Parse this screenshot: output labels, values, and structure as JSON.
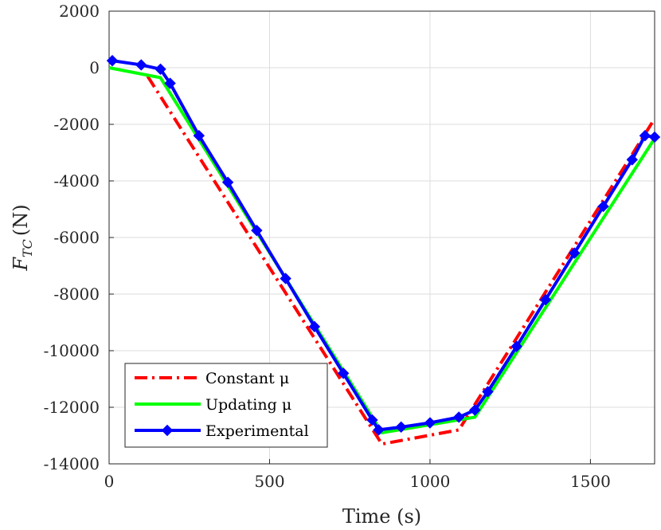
{
  "chart_data": {
    "type": "line",
    "xlabel": "Time (s)",
    "ylabel_main": "F",
    "ylabel_sub": "TC",
    "ylabel_unit": "(N)",
    "xlim": [
      0,
      1700
    ],
    "ylim": [
      -14000,
      2000
    ],
    "xticks": [
      0,
      500,
      1000,
      1500
    ],
    "yticks": [
      2000,
      0,
      -2000,
      -4000,
      -6000,
      -8000,
      -10000,
      -12000,
      -14000
    ],
    "grid": true,
    "legend_position": "bottom-left",
    "series": [
      {
        "name": "Constant μ",
        "color": "#ff0000",
        "style": "dashdot",
        "marker": "none",
        "x": [
          120,
          850,
          1090,
          1700
        ],
        "y": [
          -300,
          -13300,
          -12800,
          -1800
        ]
      },
      {
        "name": "Updating μ",
        "color": "#00ff00",
        "style": "solid",
        "marker": "none",
        "x": [
          0,
          160,
          850,
          1140,
          1700
        ],
        "y": [
          0,
          -350,
          -12900,
          -12350,
          -2500
        ]
      },
      {
        "name": "Experimental",
        "color": "#0000ff",
        "style": "solid",
        "marker": "diamond",
        "x": [
          10,
          100,
          160,
          190,
          280,
          370,
          460,
          550,
          640,
          730,
          820,
          840,
          910,
          1000,
          1090,
          1140,
          1180,
          1270,
          1360,
          1450,
          1540,
          1630,
          1670,
          1700
        ],
        "y": [
          250,
          100,
          -50,
          -550,
          -2400,
          -4050,
          -5750,
          -7450,
          -9150,
          -10800,
          -12450,
          -12800,
          -12700,
          -12550,
          -12350,
          -12100,
          -11450,
          -9850,
          -8200,
          -6550,
          -4900,
          -3250,
          -2400,
          -2450
        ]
      }
    ]
  }
}
